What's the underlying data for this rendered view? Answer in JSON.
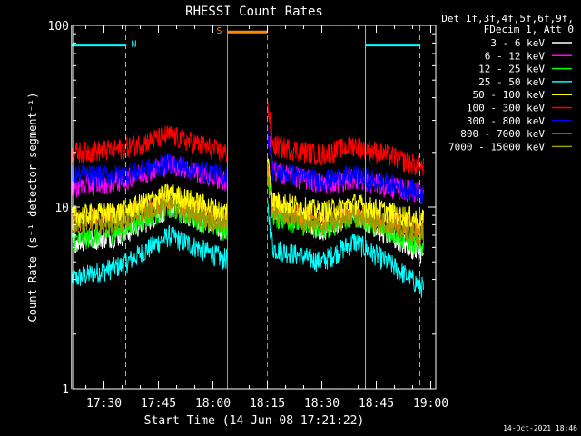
{
  "chart_data": {
    "type": "line",
    "title": "RHESSI Count Rates",
    "xlabel": "Start Time (14-Jun-08 17:21:22)",
    "ylabel": "Count Rate (s⁻¹ detector segment⁻¹)",
    "yscale": "log",
    "ylim": [
      1,
      100
    ],
    "xlim_minutes_after_start": [
      0,
      100
    ],
    "x_ticks": [
      "17:30",
      "17:45",
      "18:00",
      "18:15",
      "18:30",
      "18:45",
      "19:00"
    ],
    "y_ticks": [
      "1",
      "10",
      "100"
    ],
    "grid": false,
    "legend_title": [
      "Det 1f,3f,4f,5f,6f,9f,",
      "FDecim 1, Att 0"
    ],
    "legend_placement": "right",
    "footer": "14-Oct-2021 18:46",
    "data_gap": [
      "18:04",
      "18:15"
    ],
    "series": [
      {
        "name": "3 - 6 keV",
        "color": "#ffffff",
        "x": [
          "17:21",
          "17:35",
          "17:48",
          "18:03",
          "18:16",
          "18:30",
          "18:39",
          "18:48",
          "18:58"
        ],
        "values": [
          6.5,
          7.0,
          10.0,
          7.5,
          10.0,
          7.5,
          9.5,
          7.0,
          5.5
        ]
      },
      {
        "name": "6 - 12 keV",
        "color": "#ff00ff",
        "x": [
          "17:21",
          "17:35",
          "17:48",
          "18:03",
          "18:16",
          "18:30",
          "18:39",
          "18:48",
          "18:58"
        ],
        "values": [
          13.0,
          14.0,
          17.5,
          14.0,
          16.0,
          13.5,
          14.5,
          13.0,
          12.0
        ]
      },
      {
        "name": "12 - 25 keV",
        "color": "#00ff00",
        "x": [
          "17:21",
          "17:35",
          "17:48",
          "18:03",
          "18:16",
          "18:30",
          "18:39",
          "18:48",
          "18:58"
        ],
        "values": [
          6.5,
          7.5,
          10.0,
          7.5,
          9.0,
          7.5,
          9.0,
          7.5,
          6.0
        ]
      },
      {
        "name": "25 - 50 keV",
        "color": "#00ffff",
        "x": [
          "17:21",
          "17:35",
          "17:48",
          "18:03",
          "18:16",
          "18:30",
          "18:39",
          "18:48",
          "18:58"
        ],
        "values": [
          4.0,
          4.8,
          7.0,
          5.2,
          6.0,
          5.0,
          6.5,
          5.0,
          3.6
        ]
      },
      {
        "name": "50 - 100 keV",
        "color": "#ffff00",
        "x": [
          "17:21",
          "17:35",
          "17:48",
          "18:03",
          "18:16",
          "18:30",
          "18:39",
          "18:48",
          "18:58"
        ],
        "values": [
          9.0,
          9.5,
          12.0,
          9.5,
          11.0,
          9.5,
          10.5,
          9.5,
          8.5
        ]
      },
      {
        "name": "100 - 300 keV",
        "color": "#ff0000",
        "x": [
          "17:21",
          "17:35",
          "17:48",
          "18:03",
          "18:16",
          "18:30",
          "18:39",
          "18:48",
          "18:58"
        ],
        "values": [
          20.0,
          21.0,
          25.0,
          20.0,
          22.0,
          19.5,
          22.0,
          19.5,
          16.5
        ]
      },
      {
        "name": "300 - 800 keV",
        "color": "#0000ff",
        "x": [
          "17:21",
          "17:35",
          "17:48",
          "18:03",
          "18:16",
          "18:30",
          "18:39",
          "18:48",
          "18:58"
        ],
        "values": [
          15.0,
          15.0,
          17.5,
          15.0,
          16.0,
          14.0,
          15.0,
          13.5,
          12.0
        ]
      },
      {
        "name": "800 - 7000 keV",
        "color": "#ff8800",
        "x": [
          "17:21",
          "17:35",
          "17:48",
          "18:03",
          "18:16",
          "18:30",
          "18:39",
          "18:48",
          "18:58"
        ],
        "values": [
          8.5,
          9.0,
          11.0,
          8.5,
          10.0,
          8.5,
          9.5,
          8.5,
          7.5
        ]
      },
      {
        "name": "7000 - 15000 keV",
        "color": "#999900",
        "x": [
          "17:21",
          "17:35",
          "17:48",
          "18:03",
          "18:16",
          "18:30",
          "18:39",
          "18:48",
          "18:58"
        ],
        "values": [
          8.0,
          8.5,
          10.5,
          8.0,
          9.5,
          8.0,
          9.0,
          8.0,
          7.0
        ]
      }
    ],
    "annotations": [
      {
        "label": "N",
        "color": "#00ffff",
        "time_range": [
          "17:21",
          "17:36"
        ],
        "level": 78
      },
      {
        "label": "",
        "color": "#00ffff",
        "time_range": [
          "18:42",
          "18:57"
        ],
        "level": 78
      },
      {
        "label": "S",
        "color": "#ff8800",
        "time_range": [
          "18:04",
          "18:15"
        ],
        "level": 92
      }
    ]
  }
}
